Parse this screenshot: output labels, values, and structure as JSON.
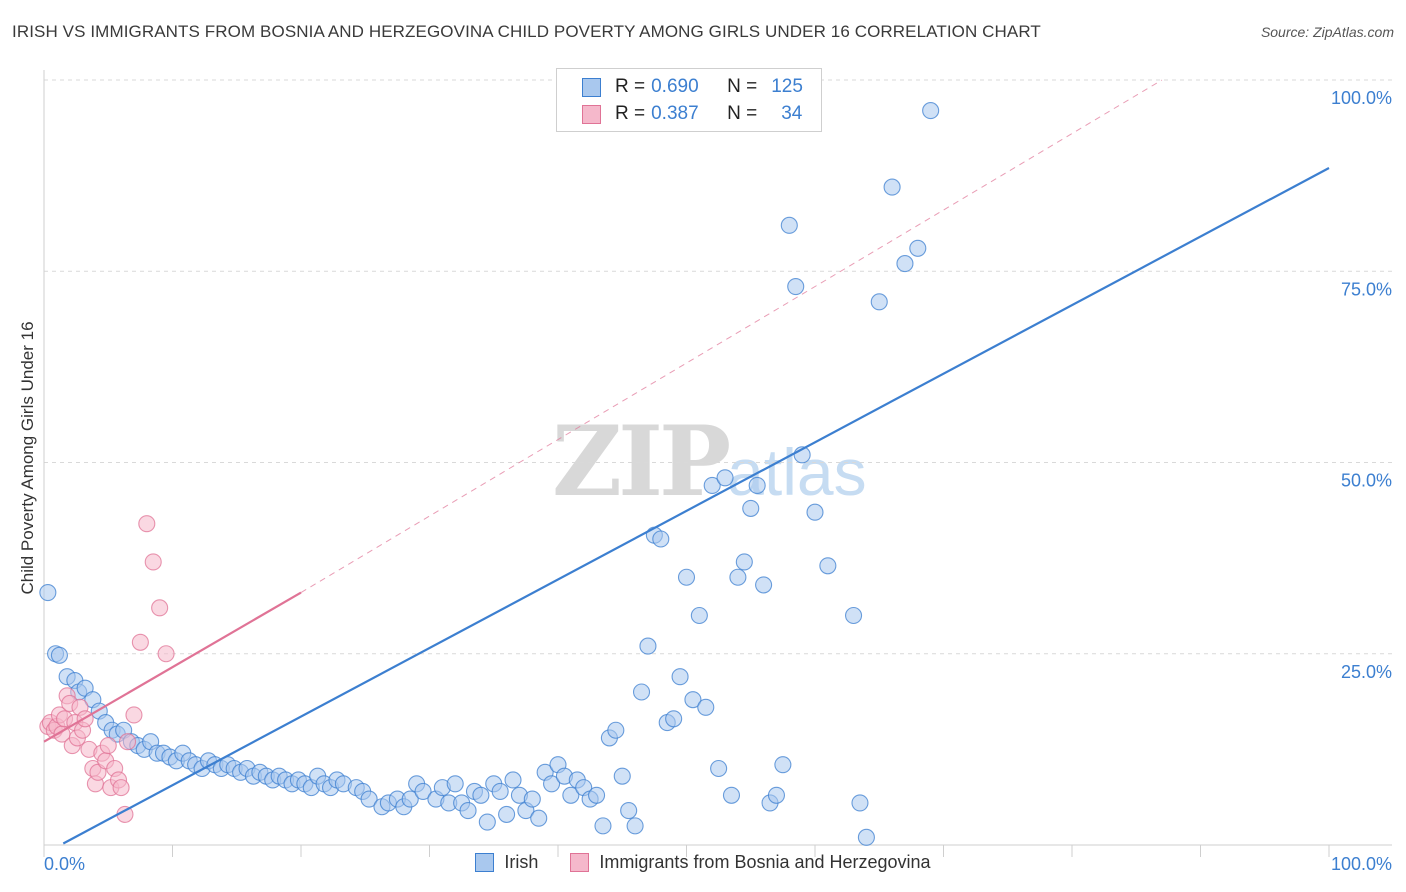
{
  "title": "IRISH VS IMMIGRANTS FROM BOSNIA AND HERZEGOVINA CHILD POVERTY AMONG GIRLS UNDER 16 CORRELATION CHART",
  "source": "Source: ZipAtlas.com",
  "watermark": {
    "zip": "ZIP",
    "atlas": "atlas"
  },
  "legend": {
    "irish": {
      "r_label": "R =",
      "r_value": "0.690",
      "n_label": "N =",
      "n_value": "125"
    },
    "bosnia": {
      "r_label": "R =",
      "r_value": "0.387",
      "n_label": "N =",
      "n_value": "34"
    }
  },
  "colors": {
    "irish": "#3c7fd0",
    "irish_fill": "#a9c8ee",
    "bosnia": "#e07396",
    "bosnia_fill": "#f5b8cb",
    "grid": "#d9d9d9",
    "axis_text": "#3c7fd0"
  },
  "chart_data": {
    "type": "scatter",
    "title": "IRISH VS IMMIGRANTS FROM BOSNIA AND HERZEGOVINA CHILD POVERTY AMONG GIRLS UNDER 16 CORRELATION CHART",
    "xlabel": "",
    "ylabel": "Child Poverty Among Girls Under 16",
    "xlim": [
      0,
      100
    ],
    "ylim": [
      0,
      100
    ],
    "x_tick_labels": [
      "0.0%",
      "100.0%"
    ],
    "y_tick_labels": [
      "25.0%",
      "50.0%",
      "75.0%",
      "100.0%"
    ],
    "y_ticks": [
      25,
      50,
      75,
      100
    ],
    "series": [
      {
        "name": "Irish",
        "points": [
          [
            0.3,
            33
          ],
          [
            0.9,
            25
          ],
          [
            1.2,
            24.8
          ],
          [
            1.8,
            22
          ],
          [
            2.4,
            21.5
          ],
          [
            2.7,
            20
          ],
          [
            3.2,
            20.5
          ],
          [
            3.8,
            19
          ],
          [
            4.3,
            17.5
          ],
          [
            4.8,
            16
          ],
          [
            5.3,
            15
          ],
          [
            5.7,
            14.5
          ],
          [
            6.2,
            15
          ],
          [
            6.8,
            13.5
          ],
          [
            7.3,
            13
          ],
          [
            7.8,
            12.5
          ],
          [
            8.3,
            13.5
          ],
          [
            8.8,
            12
          ],
          [
            9.3,
            12
          ],
          [
            9.8,
            11.5
          ],
          [
            10.3,
            11
          ],
          [
            10.8,
            12
          ],
          [
            11.3,
            11
          ],
          [
            11.8,
            10.5
          ],
          [
            12.3,
            10
          ],
          [
            12.8,
            11
          ],
          [
            13.3,
            10.5
          ],
          [
            13.8,
            10
          ],
          [
            14.3,
            10.5
          ],
          [
            14.8,
            10
          ],
          [
            15.3,
            9.5
          ],
          [
            15.8,
            10
          ],
          [
            16.3,
            9
          ],
          [
            16.8,
            9.5
          ],
          [
            17.3,
            9
          ],
          [
            17.8,
            8.5
          ],
          [
            18.3,
            9
          ],
          [
            18.8,
            8.5
          ],
          [
            19.3,
            8
          ],
          [
            19.8,
            8.5
          ],
          [
            20.3,
            8
          ],
          [
            20.8,
            7.5
          ],
          [
            21.3,
            9
          ],
          [
            21.8,
            8
          ],
          [
            22.3,
            7.5
          ],
          [
            22.8,
            8.5
          ],
          [
            23.3,
            8
          ],
          [
            24.3,
            7.5
          ],
          [
            24.8,
            7
          ],
          [
            25.3,
            6
          ],
          [
            26.3,
            5
          ],
          [
            26.8,
            5.5
          ],
          [
            27.5,
            6
          ],
          [
            28,
            5
          ],
          [
            28.5,
            6
          ],
          [
            29,
            8
          ],
          [
            29.5,
            7
          ],
          [
            30.5,
            6
          ],
          [
            31,
            7.5
          ],
          [
            31.5,
            5.5
          ],
          [
            32,
            8
          ],
          [
            32.5,
            5.5
          ],
          [
            33,
            4.5
          ],
          [
            33.5,
            7
          ],
          [
            34,
            6.5
          ],
          [
            34.5,
            3
          ],
          [
            35,
            8
          ],
          [
            35.5,
            7
          ],
          [
            36,
            4
          ],
          [
            36.5,
            8.5
          ],
          [
            37,
            6.5
          ],
          [
            37.5,
            4.5
          ],
          [
            38,
            6
          ],
          [
            38.5,
            3.5
          ],
          [
            39,
            9.5
          ],
          [
            39.5,
            8
          ],
          [
            40,
            10.5
          ],
          [
            40.5,
            9
          ],
          [
            41,
            6.5
          ],
          [
            41.5,
            8.5
          ],
          [
            42,
            7.5
          ],
          [
            42.5,
            6
          ],
          [
            43,
            6.5
          ],
          [
            43.5,
            2.5
          ],
          [
            44,
            14
          ],
          [
            44.5,
            15
          ],
          [
            45,
            9
          ],
          [
            45.5,
            4.5
          ],
          [
            46,
            2.5
          ],
          [
            46.5,
            20
          ],
          [
            47,
            26
          ],
          [
            47.5,
            40.5
          ],
          [
            48,
            40
          ],
          [
            48.5,
            16
          ],
          [
            49,
            16.5
          ],
          [
            49.5,
            22
          ],
          [
            50,
            35
          ],
          [
            50.5,
            19
          ],
          [
            51,
            30
          ],
          [
            51.5,
            18
          ],
          [
            52,
            47
          ],
          [
            52.5,
            10
          ],
          [
            53,
            48
          ],
          [
            53.5,
            6.5
          ],
          [
            54,
            35
          ],
          [
            54.5,
            37
          ],
          [
            55,
            44
          ],
          [
            55.5,
            47
          ],
          [
            56,
            34
          ],
          [
            56.5,
            5.5
          ],
          [
            57,
            6.5
          ],
          [
            57.5,
            10.5
          ],
          [
            58,
            81
          ],
          [
            58.5,
            73
          ],
          [
            59,
            51
          ],
          [
            60,
            43.5
          ],
          [
            61,
            36.5
          ],
          [
            63,
            30
          ],
          [
            63.5,
            5.5
          ],
          [
            64,
            1
          ],
          [
            65,
            71
          ],
          [
            66,
            86
          ],
          [
            67,
            76
          ],
          [
            68,
            78
          ],
          [
            69,
            96
          ]
        ]
      },
      {
        "name": "Immigrants from Bosnia and Herzegovina",
        "points": [
          [
            0.3,
            15.5
          ],
          [
            0.5,
            16
          ],
          [
            0.8,
            15
          ],
          [
            1,
            15.5
          ],
          [
            1.2,
            17
          ],
          [
            1.4,
            14.5
          ],
          [
            1.6,
            16.5
          ],
          [
            1.8,
            19.5
          ],
          [
            2,
            18.5
          ],
          [
            2.2,
            13
          ],
          [
            2.4,
            16
          ],
          [
            2.6,
            14
          ],
          [
            2.8,
            18
          ],
          [
            3,
            15
          ],
          [
            3.2,
            16.5
          ],
          [
            3.5,
            12.5
          ],
          [
            3.8,
            10
          ],
          [
            4,
            8
          ],
          [
            4.2,
            9.5
          ],
          [
            4.5,
            12
          ],
          [
            4.8,
            11
          ],
          [
            5,
            13
          ],
          [
            5.2,
            7.5
          ],
          [
            5.5,
            10
          ],
          [
            5.8,
            8.5
          ],
          [
            6,
            7.5
          ],
          [
            6.3,
            4
          ],
          [
            6.5,
            13.5
          ],
          [
            7,
            17
          ],
          [
            7.5,
            26.5
          ],
          [
            8,
            42
          ],
          [
            8.5,
            37
          ],
          [
            9,
            31
          ],
          [
            9.5,
            25
          ]
        ]
      }
    ],
    "trend_lines": [
      {
        "series": "Irish",
        "x": [
          1.5,
          100
        ],
        "y": [
          0.2,
          88.5
        ]
      },
      {
        "series": "Immigrants from Bosnia and Herzegovina",
        "x": [
          0,
          20
        ],
        "y": [
          13.5,
          33
        ],
        "dashed_extension_to": [
          87,
          100
        ]
      }
    ]
  },
  "bottom_legend": [
    {
      "label": "Irish"
    },
    {
      "label": "Immigrants from Bosnia and Herzegovina"
    }
  ]
}
